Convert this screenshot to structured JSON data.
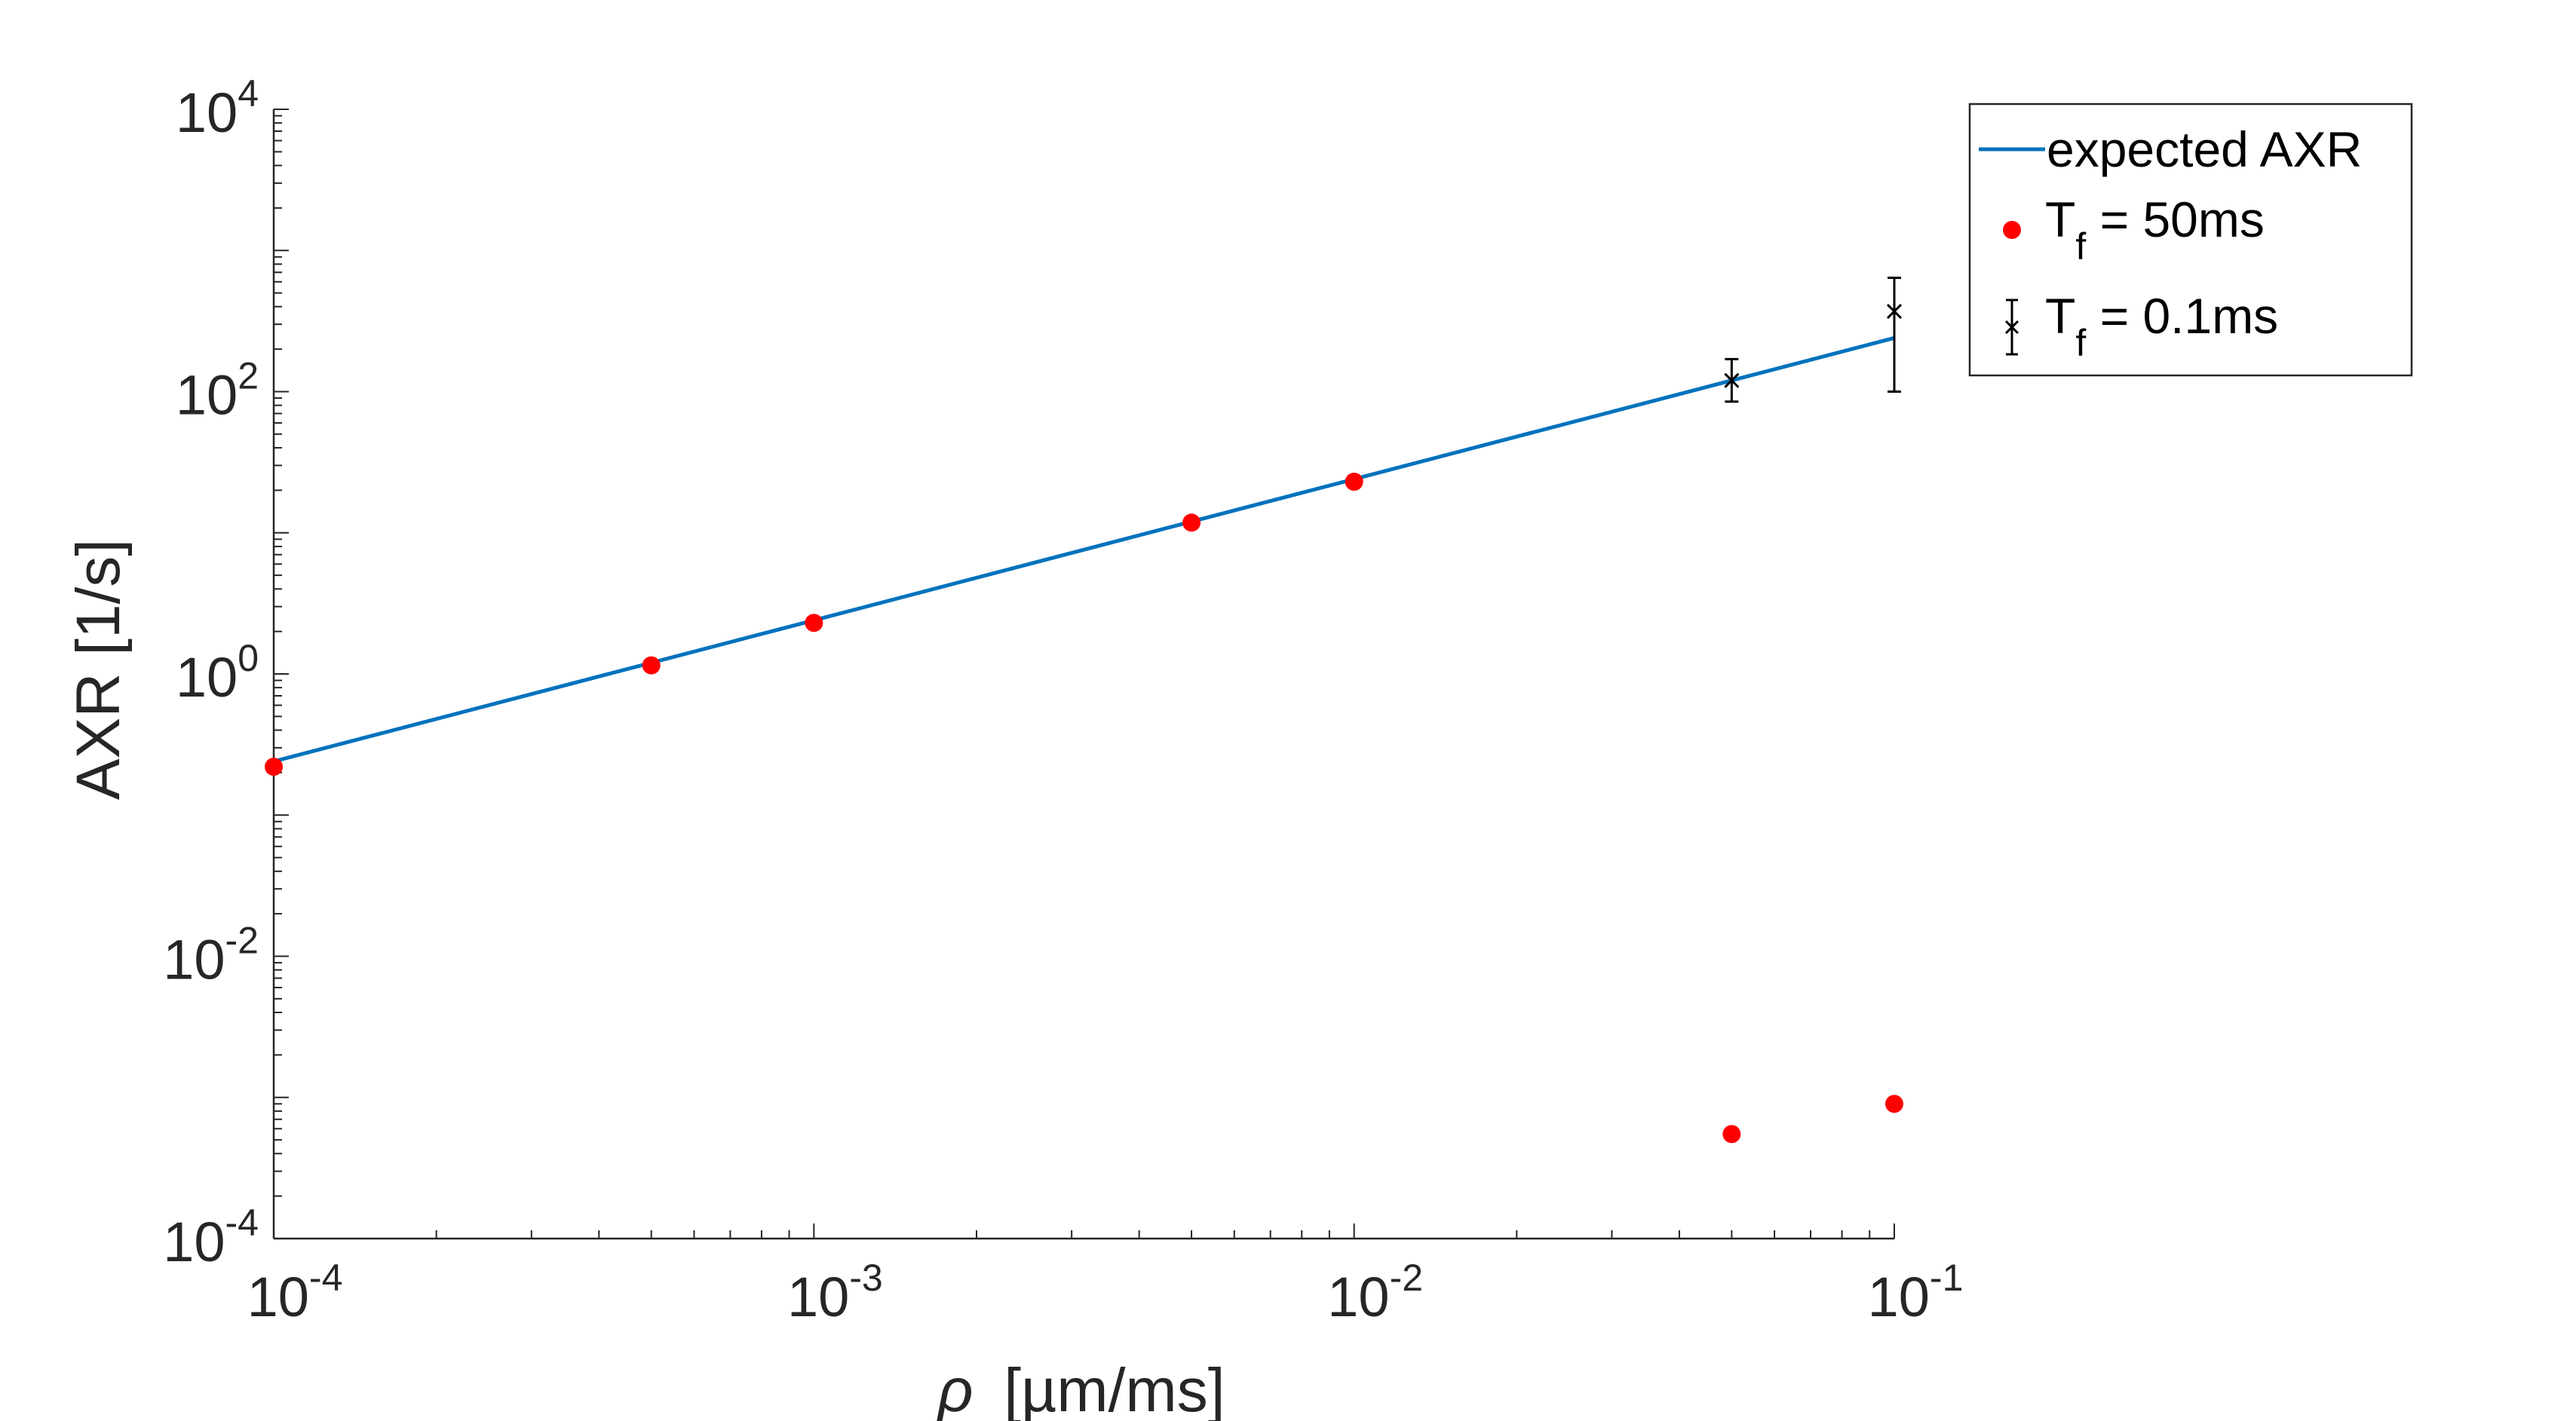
{
  "chart_data": {
    "type": "scatter",
    "title": "",
    "xlabel": "ρ [µm/ms]",
    "xlabel_symbol": "ρ",
    "xlabel_unit": "[µm/ms]",
    "ylabel": "AXR [1/s]",
    "xscale": "log",
    "yscale": "log",
    "xlim": [
      0.0001,
      0.1
    ],
    "ylim": [
      0.0001,
      10000
    ],
    "x_ticks": [
      {
        "value": 0.0001,
        "base": "10",
        "exp": "-4"
      },
      {
        "value": 0.001,
        "base": "10",
        "exp": "-3"
      },
      {
        "value": 0.01,
        "base": "10",
        "exp": "-2"
      },
      {
        "value": 0.1,
        "base": "10",
        "exp": "-1"
      }
    ],
    "y_ticks": [
      {
        "value": 0.0001,
        "base": "10",
        "exp": "-4"
      },
      {
        "value": 0.01,
        "base": "10",
        "exp": "-2"
      },
      {
        "value": 1,
        "base": "10",
        "exp": "0"
      },
      {
        "value": 100,
        "base": "10",
        "exp": "2"
      },
      {
        "value": 10000,
        "base": "10",
        "exp": "4"
      }
    ],
    "grid": false,
    "legend_position": "top-right outside",
    "series": [
      {
        "name": "expected AXR",
        "kind": "line",
        "color": "#0072BD",
        "x": [
          0.0001,
          0.1
        ],
        "y": [
          0.24,
          240
        ]
      },
      {
        "name": "T_f = 50ms",
        "kind": "markers",
        "color": "#FF0000",
        "x": [
          0.0001,
          0.0005,
          0.001,
          0.005,
          0.01,
          0.05,
          0.1
        ],
        "y": [
          0.22,
          1.15,
          2.3,
          11.8,
          23,
          0.00055,
          0.0009
        ]
      },
      {
        "name": "T_f = 0.1ms",
        "kind": "errorbar",
        "color": "#000000",
        "x": [
          0.05,
          0.1
        ],
        "y": [
          120,
          370
        ],
        "y_lower": [
          85,
          100
        ],
        "y_upper": [
          170,
          640
        ]
      }
    ],
    "legend": [
      {
        "label": "expected AXR",
        "marker": "line"
      },
      {
        "label_main": "T",
        "label_sub": "f",
        "label_rest": " = 50ms",
        "marker": "dot"
      },
      {
        "label_main": "T",
        "label_sub": "f",
        "label_rest": " = 0.1ms",
        "marker": "errorbar"
      }
    ]
  }
}
